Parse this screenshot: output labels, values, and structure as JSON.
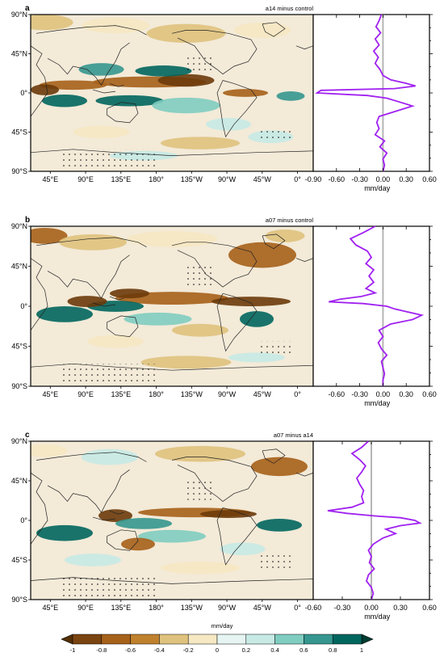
{
  "colors": {
    "brown_dark": "#6b3a0a",
    "brown": "#a6611a",
    "tan": "#dfc27d",
    "cream": "#f6e8c3",
    "white": "#f5f5f5",
    "teal_light": "#c7eae5",
    "teal": "#80cdc1",
    "teal_mid": "#35978f",
    "teal_dark": "#01665e",
    "profile_line": "#a020f0",
    "zero_line": "#b5b5b5"
  },
  "lat_tick_labels": [
    "90°N",
    "45°N",
    "0°",
    "45°S",
    "90°S"
  ],
  "lon_tick_labels": [
    "45°E",
    "90°E",
    "135°E",
    "180°",
    "135°W",
    "90°W",
    "45°W",
    "0°"
  ],
  "colorbar": {
    "label": "mm/day",
    "tick_labels": [
      "-1",
      "-0.8",
      "-0.6",
      "-0.4",
      "-0.2",
      "0",
      "0.2",
      "0.4",
      "0.6",
      "0.8",
      "1"
    ]
  },
  "chart_data": [
    {
      "type": "heatmap",
      "panel": "a",
      "title": "a14 minus control",
      "profile": {
        "type": "line",
        "xlabel": "mm/day",
        "xlim": [
          -0.9,
          0.6
        ],
        "tick_labels": [
          "-0.90",
          "-0.60",
          "-0.30",
          "0.00",
          "0.30",
          "0.60"
        ],
        "lat": [
          90,
          83,
          76,
          69,
          62,
          55,
          48,
          41,
          34,
          27,
          20,
          15,
          11,
          8,
          5,
          3,
          0,
          -3,
          -6,
          -10,
          -15,
          -20,
          -27,
          -34,
          -41,
          -48,
          -55,
          -62,
          -69,
          -76,
          -83,
          -90
        ],
        "values": [
          -0.02,
          -0.05,
          -0.09,
          -0.03,
          -0.1,
          -0.05,
          -0.12,
          -0.06,
          -0.1,
          -0.04,
          0.0,
          0.1,
          0.3,
          0.42,
          0.15,
          -0.8,
          -0.85,
          -0.2,
          0.05,
          0.2,
          0.38,
          0.2,
          -0.05,
          -0.08,
          -0.05,
          -0.1,
          0.02,
          -0.04,
          0.05,
          0.0,
          0.02,
          0.0
        ]
      }
    },
    {
      "type": "heatmap",
      "panel": "b",
      "title": "a07 minus control",
      "profile": {
        "type": "line",
        "xlabel": "mm/day",
        "xlim": [
          -0.9,
          0.6
        ],
        "tick_labels": [
          "-0.60",
          "-0.30",
          "0.00",
          "0.30",
          "0.60"
        ],
        "lat": [
          90,
          83,
          76,
          69,
          62,
          55,
          48,
          41,
          34,
          27,
          20,
          15,
          11,
          8,
          5,
          3,
          0,
          -3,
          -6,
          -10,
          -15,
          -20,
          -27,
          -34,
          -41,
          -48,
          -55,
          -62,
          -69,
          -76,
          -83,
          -90
        ],
        "values": [
          -0.1,
          -0.25,
          -0.42,
          -0.35,
          -0.2,
          -0.15,
          -0.22,
          -0.12,
          -0.18,
          -0.12,
          -0.22,
          -0.1,
          -0.28,
          -0.55,
          -0.7,
          -0.25,
          0.05,
          0.15,
          0.3,
          0.5,
          0.38,
          0.1,
          -0.05,
          0.0,
          -0.06,
          -0.02,
          0.05,
          -0.02,
          0.0,
          0.02,
          0.0,
          0.0
        ]
      }
    },
    {
      "type": "heatmap",
      "panel": "c",
      "title": "a07 minus a14",
      "profile": {
        "type": "line",
        "xlabel": "mm/day",
        "xlim": [
          -0.6,
          0.6
        ],
        "tick_labels": [
          "-0.60",
          "-0.30",
          "0.00",
          "0.30",
          "0.60"
        ],
        "lat": [
          90,
          83,
          76,
          69,
          62,
          55,
          48,
          41,
          34,
          27,
          20,
          15,
          11,
          8,
          5,
          3,
          0,
          -3,
          -6,
          -10,
          -15,
          -20,
          -27,
          -34,
          -41,
          -48,
          -55,
          -62,
          -69,
          -76,
          -83,
          -90
        ],
        "values": [
          -0.03,
          -0.1,
          -0.2,
          -0.12,
          -0.06,
          -0.1,
          -0.15,
          -0.12,
          -0.08,
          -0.1,
          -0.08,
          -0.2,
          -0.45,
          -0.25,
          0.05,
          0.3,
          0.45,
          0.5,
          0.3,
          0.15,
          0.25,
          0.12,
          0.02,
          -0.03,
          0.0,
          -0.02,
          0.03,
          -0.03,
          -0.05,
          0.0,
          0.02,
          0.0
        ]
      }
    }
  ]
}
